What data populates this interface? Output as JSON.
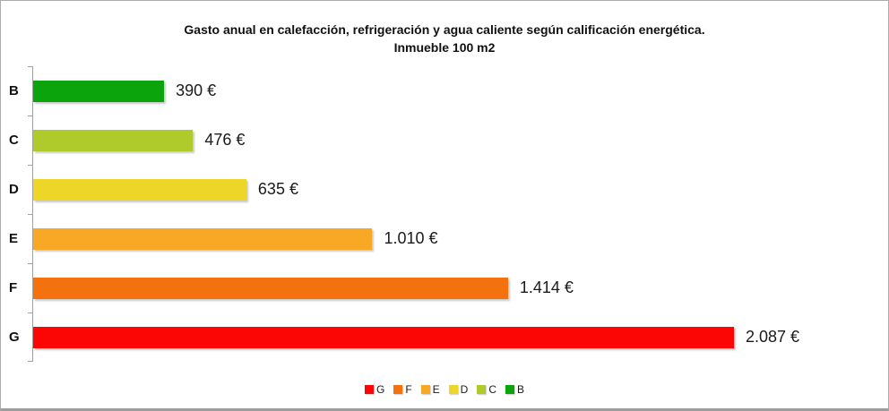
{
  "frame": {
    "border_color": "#acacac"
  },
  "chart_data": {
    "type": "bar",
    "orientation": "horizontal",
    "title": "Gasto anual en calefacción, refrigeración y agua caliente según calificación energética.",
    "subtitle": "Inmueble 100 m2",
    "categories": [
      "B",
      "C",
      "D",
      "E",
      "F",
      "G"
    ],
    "values": [
      390,
      476,
      635,
      1010,
      1414,
      2087
    ],
    "rows": [
      {
        "category": "B",
        "value": 390,
        "value_label": "390 €",
        "color": "#0ca40c"
      },
      {
        "category": "C",
        "value": 476,
        "value_label": "476 €",
        "color": "#afca2b"
      },
      {
        "category": "D",
        "value": 635,
        "value_label": "635 €",
        "color": "#edd628"
      },
      {
        "category": "E",
        "value": 1010,
        "value_label": "1.010 €",
        "color": "#f9a826"
      },
      {
        "category": "F",
        "value": 1414,
        "value_label": "1.414 €",
        "color": "#f4720d"
      },
      {
        "category": "G",
        "value": 2087,
        "value_label": "2.087 €",
        "color": "#fb0505"
      }
    ],
    "legend": [
      {
        "label": "G",
        "color": "#fb0505"
      },
      {
        "label": "F",
        "color": "#f4720d"
      },
      {
        "label": "E",
        "color": "#f9a826"
      },
      {
        "label": "D",
        "color": "#edd628"
      },
      {
        "label": "C",
        "color": "#afca2b"
      },
      {
        "label": "B",
        "color": "#0ca40c"
      }
    ],
    "legend_position": "bottom",
    "grid": false,
    "xlim": [
      0,
      2530
    ],
    "scale_max": 2530,
    "axis_color": "#a0a0a0"
  }
}
